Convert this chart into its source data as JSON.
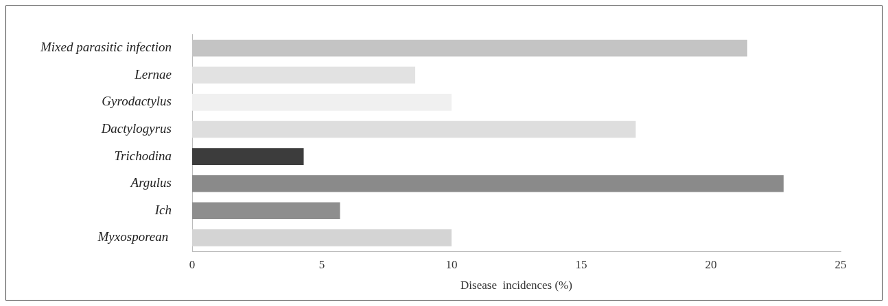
{
  "chart_data": {
    "type": "bar",
    "orientation": "horizontal",
    "xlabel": "Disease  incidences (%)",
    "categories": [
      "Mixed parasitic infection",
      "Lernae",
      "Gyrodactylus",
      "Dactylogyrus",
      "Trichodina",
      "Argulus",
      "Ich",
      "Myxosporean "
    ],
    "values": [
      21.4,
      8.6,
      10.0,
      17.1,
      4.3,
      22.8,
      5.7,
      10.0
    ],
    "colors": [
      "#c4c4c4",
      "#e2e2e2",
      "#f0f0f0",
      "#dedede",
      "#3c3c3c",
      "#8a8a8a",
      "#8e8e8e",
      "#d4d4d4"
    ],
    "xlim": [
      0,
      25
    ],
    "xticks": [
      0,
      5,
      10,
      15,
      20,
      25
    ],
    "grid": false,
    "legend": false
  }
}
